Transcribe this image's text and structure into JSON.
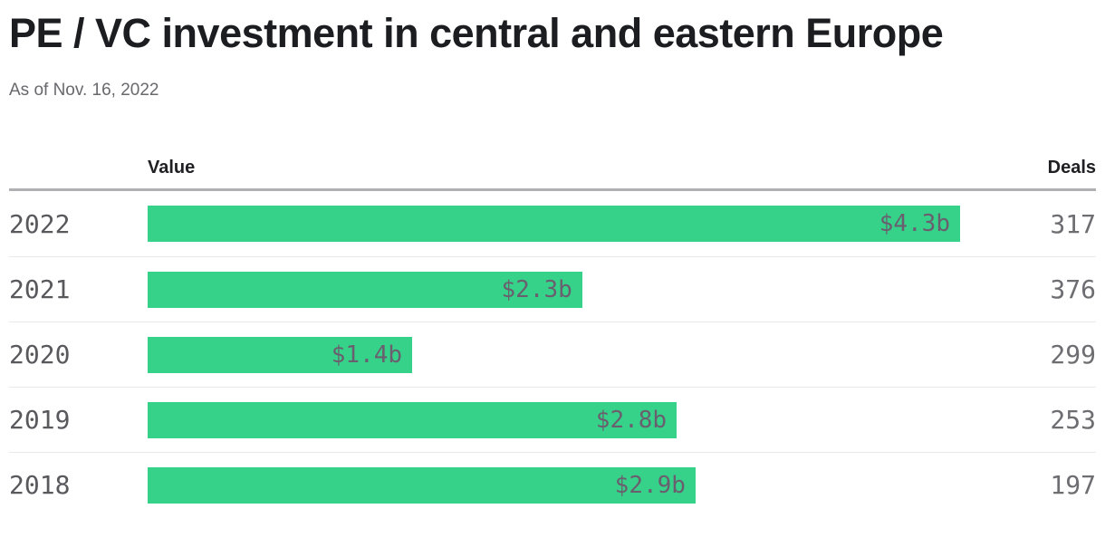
{
  "title": "PE / VC investment in central and eastern Europe",
  "subtitle": "As of Nov. 16, 2022",
  "columns": {
    "value": "Value",
    "deals": "Deals"
  },
  "colors": {
    "bar_green": "#36d28a",
    "bar_label": "#6a5f6e",
    "title_text": "#1c1d21",
    "subtitle_text": "#68686d",
    "year_text": "#58585d",
    "deals_text": "#6d6d72",
    "header_divider": "#b0b0b3",
    "row_divider": "#e8e8ea"
  },
  "chart_data": {
    "type": "bar",
    "orientation": "horizontal",
    "title": "PE / VC investment in central and eastern Europe",
    "subtitle": "As of Nov. 16, 2022",
    "categories": [
      "2022",
      "2021",
      "2020",
      "2019",
      "2018"
    ],
    "series": [
      {
        "name": "Value",
        "unit": "billions USD",
        "values": [
          4.3,
          2.3,
          1.4,
          2.8,
          2.9
        ],
        "labels": [
          "$4.3b",
          "$2.3b",
          "$1.4b",
          "$2.8b",
          "$2.9b"
        ]
      },
      {
        "name": "Deals",
        "values": [
          317,
          376,
          299,
          253,
          197
        ]
      }
    ],
    "xlim": [
      0,
      4.3
    ],
    "grid": false,
    "legend": "none",
    "bar_color": "#36d28a",
    "bar_label_position": "inside-end"
  }
}
